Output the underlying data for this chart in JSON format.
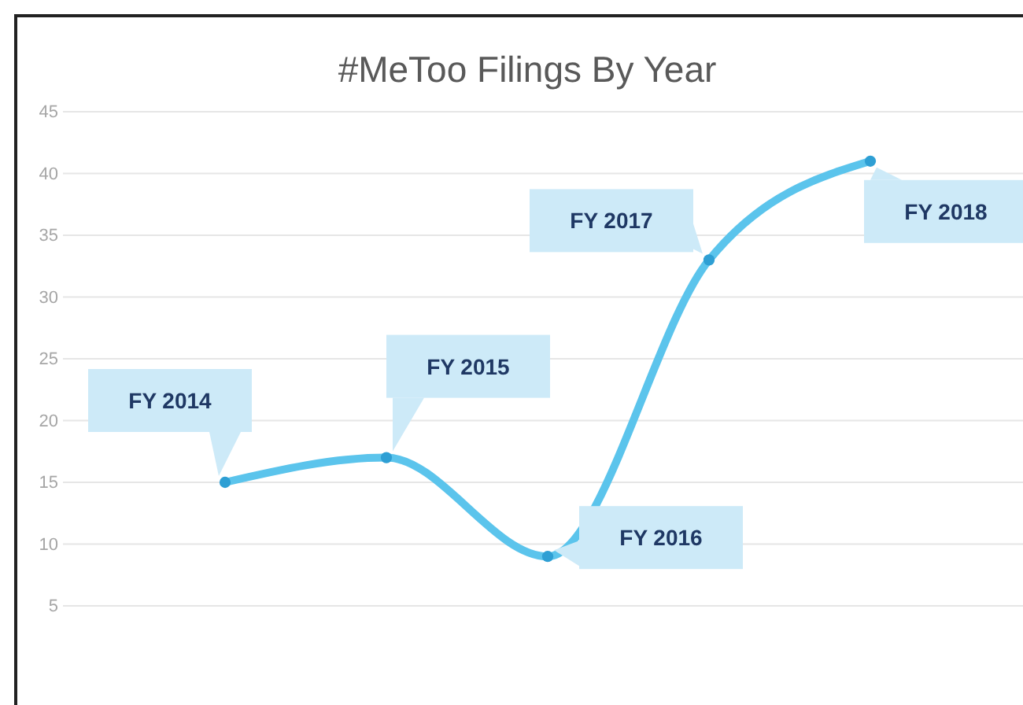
{
  "chart_data": {
    "type": "line",
    "title": "#MeToo Filings By Year",
    "categories": [
      null,
      null,
      null,
      null,
      null
    ],
    "series": [
      {
        "color": "#5bc4ec",
        "values": [
          15,
          17,
          9,
          33,
          41
        ]
      }
    ],
    "annotations": [
      "FY 2014",
      "FY 2015",
      "FY 2016",
      "FY 2017",
      "FY 2018"
    ],
    "ylim": [
      5,
      45
    ],
    "yticks": [
      5,
      10,
      15,
      20,
      25,
      30,
      35,
      40,
      45
    ],
    "grid": "y",
    "marker": "circle",
    "line_style": "solid",
    "tick_labels": "y"
  }
}
